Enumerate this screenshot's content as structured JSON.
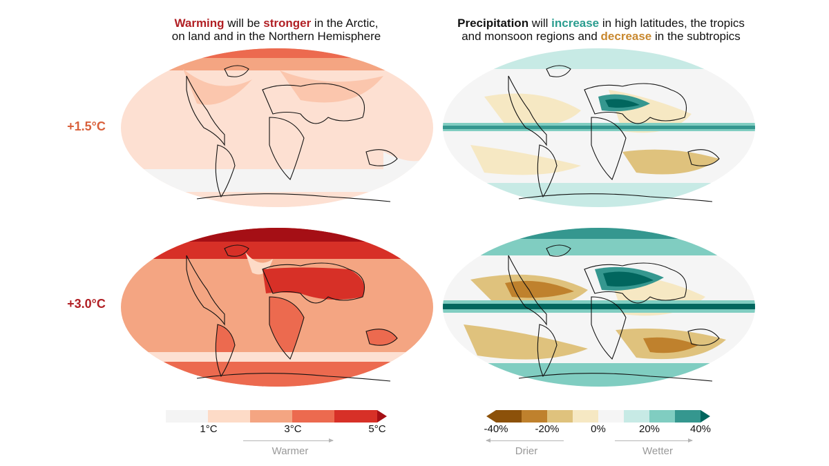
{
  "titles": {
    "left": {
      "w1": "Warming",
      "t1": " will be ",
      "w2": "stronger",
      "t2": " in the Arctic,",
      "line2": "on land and in the Northern Hemisphere"
    },
    "right": {
      "w1": "Precipitation",
      "t1": " will ",
      "w2": "increase",
      "t2": " in high latitudes, the tropics",
      "line2a": "and monsoon regions and ",
      "w3": "decrease",
      "line2b": " in the subtropics"
    }
  },
  "rows": [
    {
      "label": "+1.5°C",
      "color": "#d9603b"
    },
    {
      "label": "+3.0°C",
      "color": "#b11f24"
    }
  ],
  "colors": {
    "warm_title": "#b11f24",
    "wet_title": "#2a9d8f",
    "dry_title": "#c8882f",
    "temp_scale": [
      "#f4f4f4",
      "#fddbc7",
      "#f4a582",
      "#ec6a4f",
      "#d73027",
      "#a50f15"
    ],
    "precip_scale": [
      "#8c510a",
      "#bf812d",
      "#dfc27d",
      "#f6e8c3",
      "#f5f5f5",
      "#c7eae5",
      "#80cdc1",
      "#35978f",
      "#01665e"
    ]
  },
  "temp_legend": {
    "ticks": [
      "1°C",
      "3°C",
      "5°C"
    ],
    "direction": "Warmer"
  },
  "precip_legend": {
    "ticks": [
      "-40%",
      "-20%",
      "0%",
      "20%",
      "40%"
    ],
    "dry_label": "Drier",
    "wet_label": "Wetter"
  },
  "map_icons": [
    "temperature-map-1p5",
    "precipitation-map-1p5",
    "temperature-map-3p0",
    "precipitation-map-3p0"
  ]
}
